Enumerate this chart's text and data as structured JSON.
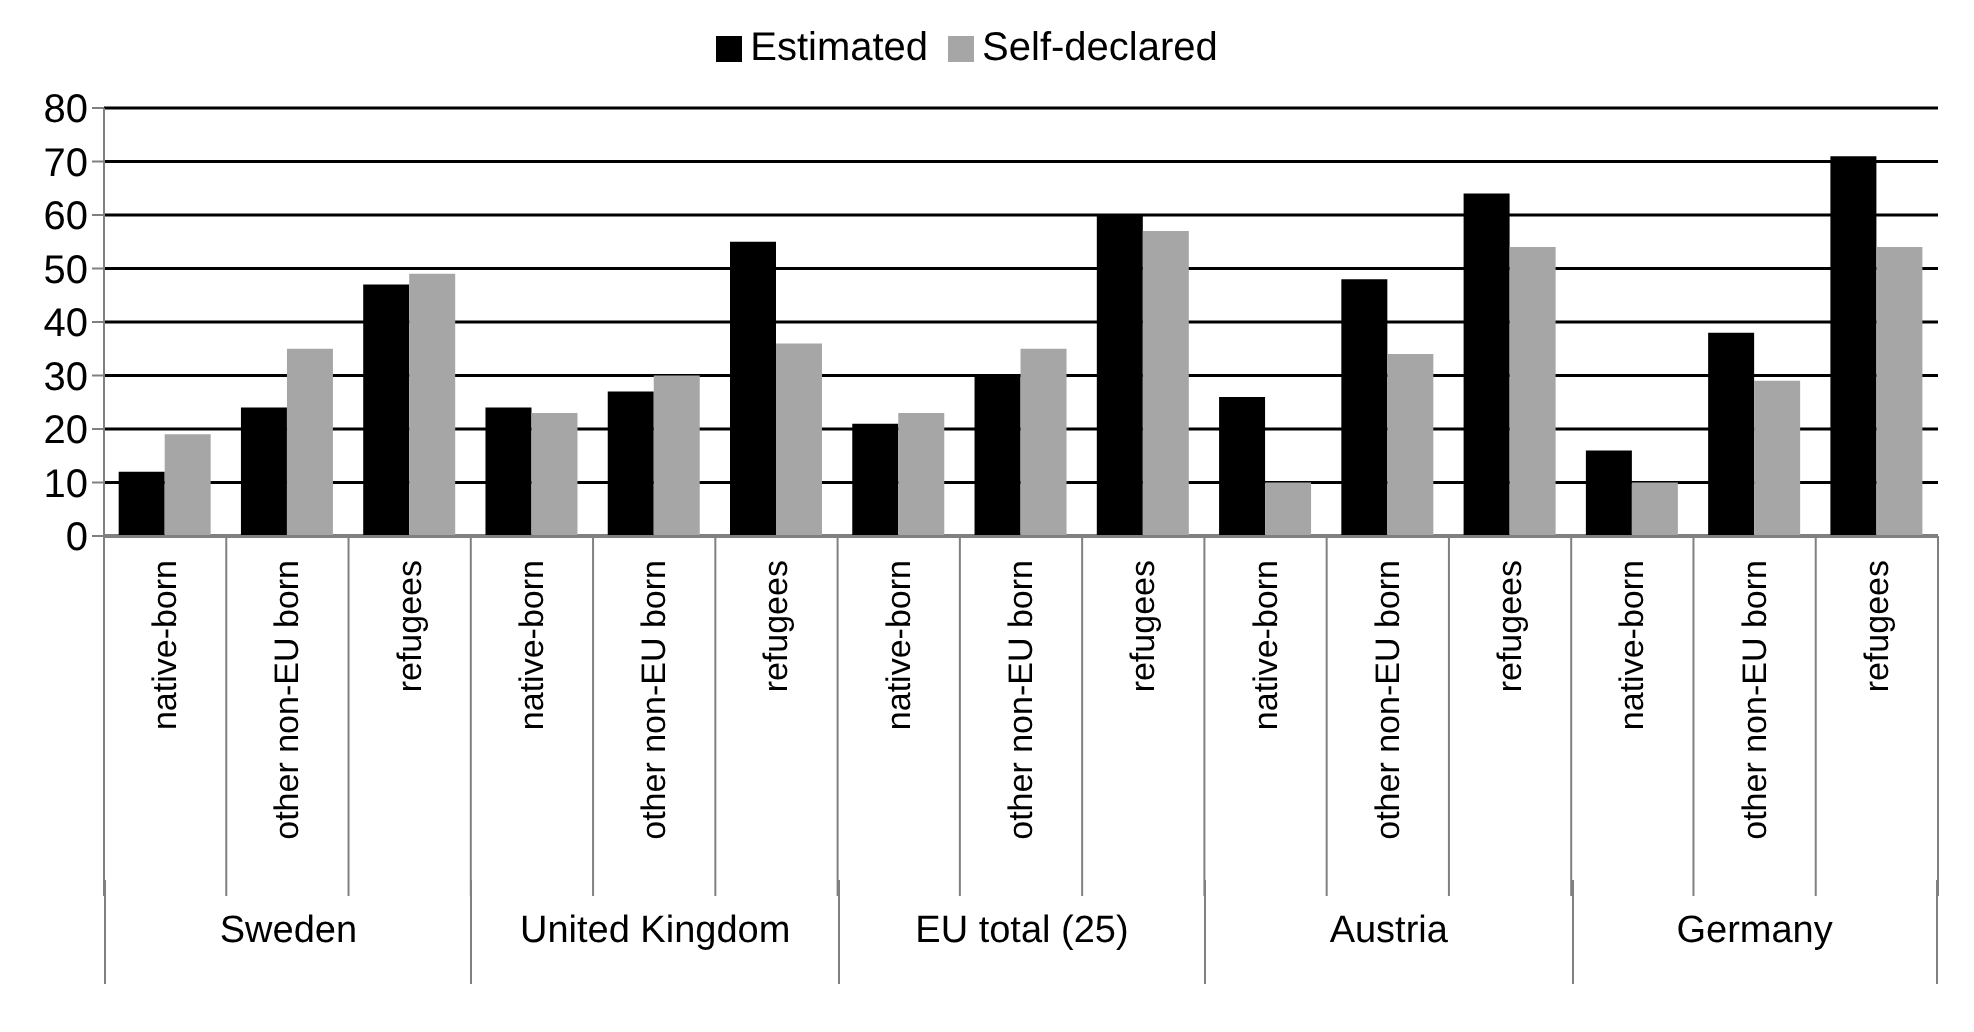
{
  "chart_data": {
    "type": "bar",
    "categories": [
      "native-born",
      "other non-EU born",
      "refugees",
      "native-born",
      "other non-EU born",
      "refugees",
      "native-born",
      "other non-EU born",
      "refugees",
      "native-born",
      "other non-EU born",
      "refugees",
      "native-born",
      "other non-EU born",
      "refugees"
    ],
    "series": [
      {
        "name": "Estimated",
        "color": "#000000",
        "values": [
          12,
          24,
          47,
          24,
          27,
          55,
          21,
          30,
          60,
          26,
          48,
          64,
          16,
          38,
          71
        ]
      },
      {
        "name": "Self-declared",
        "color": "#a6a6a6",
        "values": [
          19,
          35,
          49,
          23,
          30,
          36,
          23,
          35,
          57,
          10,
          34,
          54,
          10,
          29,
          54
        ]
      }
    ],
    "ylim": [
      0,
      80
    ],
    "yticks": [
      0,
      10,
      20,
      30,
      40,
      50,
      60,
      70,
      80
    ],
    "grid": "y",
    "legend": "top",
    "annotations": [
      "Sweden",
      "United Kingdom",
      "EU total (25)",
      "Austria",
      "Germany"
    ]
  }
}
